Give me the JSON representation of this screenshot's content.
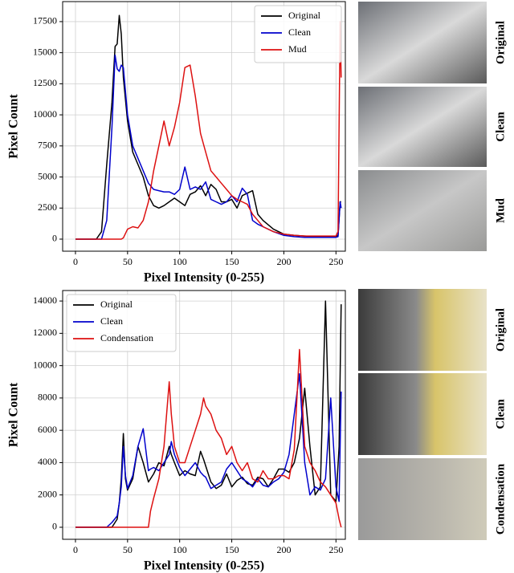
{
  "chart_data": [
    {
      "type": "line",
      "x_label": "Pixel Intensity (0-255)",
      "y_label": "Pixel Count",
      "x": [
        0,
        20,
        25,
        30,
        35,
        38,
        40,
        42,
        44,
        46,
        50,
        55,
        60,
        65,
        70,
        75,
        80,
        85,
        90,
        95,
        100,
        105,
        110,
        115,
        120,
        125,
        130,
        135,
        140,
        145,
        150,
        155,
        160,
        165,
        170,
        175,
        180,
        190,
        200,
        210,
        220,
        230,
        240,
        250,
        252,
        254,
        255
      ],
      "series": [
        {
          "name": "Original",
          "color": "#000000",
          "values": [
            0,
            0,
            600,
            6000,
            11000,
            15500,
            15700,
            18000,
            16500,
            13000,
            9500,
            7000,
            6000,
            5000,
            3500,
            2700,
            2500,
            2700,
            3000,
            3300,
            3000,
            2700,
            3600,
            3800,
            4300,
            3500,
            4400,
            4000,
            3000,
            3000,
            3200,
            2500,
            3500,
            3700,
            3900,
            2000,
            1500,
            800,
            400,
            300,
            250,
            200,
            200,
            200,
            300,
            3000,
            3000
          ]
        },
        {
          "name": "Clean",
          "color": "#0000cc",
          "values": [
            0,
            0,
            0,
            1500,
            9000,
            14800,
            13700,
            13500,
            14000,
            13800,
            10000,
            7500,
            6500,
            5500,
            4500,
            4000,
            3900,
            3800,
            3800,
            3600,
            4000,
            5800,
            4000,
            4200,
            4000,
            4600,
            3200,
            3000,
            2800,
            3000,
            3500,
            3000,
            4100,
            3600,
            1500,
            1200,
            1000,
            600,
            300,
            200,
            150,
            150,
            150,
            150,
            200,
            3000,
            2500
          ]
        },
        {
          "name": "Mud",
          "color": "#dd1111",
          "values": [
            0,
            0,
            0,
            0,
            0,
            0,
            0,
            0,
            0,
            100,
            800,
            1000,
            900,
            1500,
            3000,
            5500,
            7500,
            9500,
            7500,
            9000,
            11000,
            13800,
            14000,
            11500,
            8500,
            7000,
            5500,
            5000,
            4500,
            4000,
            3500,
            3200,
            3000,
            2800,
            2000,
            1500,
            1000,
            600,
            400,
            300,
            250,
            250,
            250,
            250,
            600,
            17500,
            13000
          ]
        }
      ],
      "xlim": [
        -12.3,
        259
      ],
      "ylim": [
        -970,
        19110
      ],
      "xticks": [
        0,
        50,
        100,
        150,
        200,
        250
      ],
      "yticks": [
        0,
        2500,
        5000,
        7500,
        10000,
        12500,
        15000,
        17500
      ],
      "grid": true,
      "legend": "upper right",
      "panel_labels": [
        "Original",
        "Clean",
        "Mud"
      ]
    },
    {
      "type": "line",
      "x_label": "Pixel Intensity (0-255)",
      "y_label": "Pixel Count",
      "x": [
        0,
        30,
        35,
        40,
        42,
        44,
        46,
        48,
        50,
        55,
        60,
        65,
        70,
        72,
        75,
        80,
        85,
        90,
        92,
        95,
        100,
        105,
        110,
        115,
        120,
        123,
        125,
        130,
        135,
        140,
        145,
        150,
        155,
        160,
        165,
        170,
        175,
        180,
        185,
        190,
        195,
        200,
        205,
        210,
        215,
        220,
        225,
        230,
        235,
        240,
        245,
        250,
        253,
        255
      ],
      "series": [
        {
          "name": "Original",
          "color": "#000000",
          "values": [
            0,
            0,
            0,
            500,
            1500,
            3000,
            5800,
            3000,
            2300,
            3000,
            5000,
            4000,
            2800,
            3000,
            3300,
            4000,
            3800,
            5000,
            4500,
            4000,
            3200,
            3500,
            3300,
            3200,
            4700,
            4200,
            3800,
            2800,
            2400,
            2600,
            3300,
            2500,
            2900,
            3100,
            2700,
            2600,
            3100,
            3000,
            2500,
            3000,
            3600,
            3600,
            3400,
            4000,
            5500,
            8600,
            5000,
            2000,
            2500,
            14000,
            2000,
            1600,
            5000,
            13800
          ]
        },
        {
          "name": "Clean",
          "color": "#0000cc",
          "values": [
            0,
            0,
            300,
            700,
            1500,
            2500,
            5000,
            3200,
            2400,
            3200,
            5000,
            6100,
            3500,
            3600,
            3700,
            3500,
            4000,
            4500,
            5300,
            4500,
            3700,
            3200,
            3600,
            4000,
            3400,
            3200,
            3100,
            2400,
            2600,
            2800,
            3600,
            4000,
            3500,
            3000,
            2800,
            2500,
            3000,
            2600,
            2500,
            2800,
            3000,
            3400,
            4500,
            7000,
            9500,
            4000,
            2000,
            2500,
            2300,
            3000,
            8000,
            2500,
            1600,
            8400
          ]
        },
        {
          "name": "Condensation",
          "color": "#dd1111",
          "values": [
            0,
            0,
            0,
            0,
            0,
            0,
            0,
            0,
            0,
            0,
            0,
            0,
            0,
            1000,
            1800,
            3000,
            5000,
            9000,
            7000,
            5000,
            4000,
            4000,
            5000,
            6000,
            7000,
            8000,
            7500,
            7000,
            6000,
            5500,
            4500,
            5000,
            4000,
            3500,
            4000,
            3000,
            2800,
            3500,
            3000,
            3000,
            3200,
            3200,
            3000,
            4800,
            11000,
            5000,
            4000,
            3500,
            2800,
            2500,
            2000,
            1500,
            500,
            0
          ]
        }
      ],
      "xlim": [
        -12.3,
        259
      ],
      "ylim": [
        -745,
        14650
      ],
      "xticks": [
        0,
        50,
        100,
        150,
        200,
        250
      ],
      "yticks": [
        0,
        2000,
        4000,
        6000,
        8000,
        10000,
        12000,
        14000
      ],
      "grid": true,
      "legend": "upper left",
      "panel_labels": [
        "Original",
        "Clean",
        "Condensation"
      ]
    }
  ]
}
